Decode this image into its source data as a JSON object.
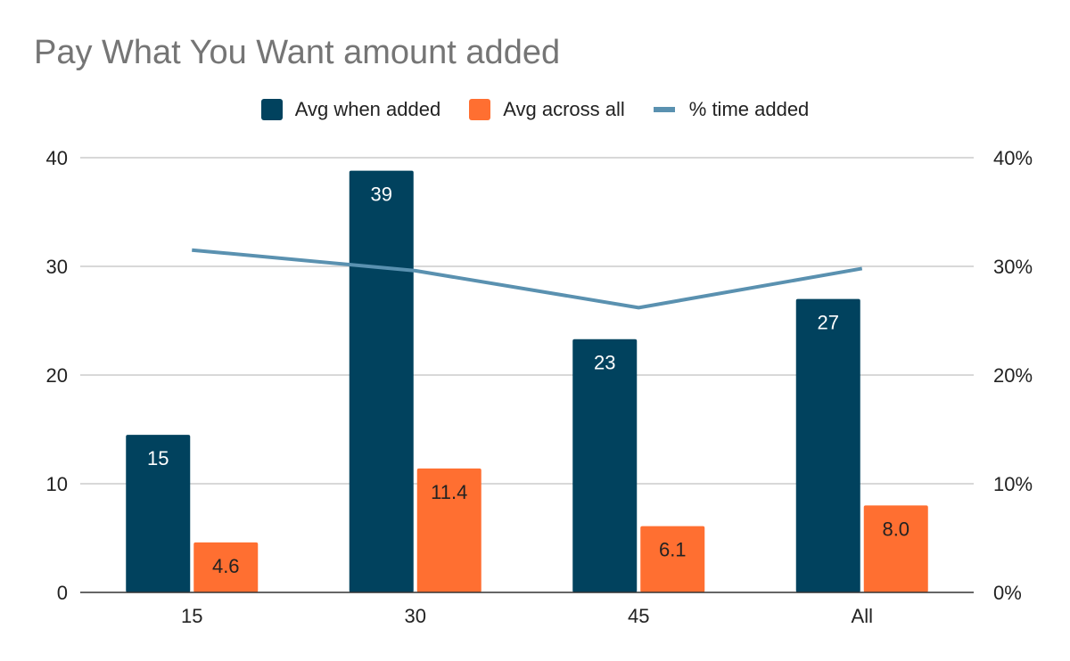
{
  "chart_data": {
    "type": "bar",
    "title": "Pay What You Want amount added",
    "categories": [
      "15",
      "30",
      "45",
      "All"
    ],
    "series": [
      {
        "name": "Avg when added",
        "kind": "bar",
        "axis": "left",
        "color": "#01425e",
        "values": [
          14.5,
          38.8,
          23.3,
          27.0
        ],
        "labels": [
          "15",
          "39",
          "23",
          "27"
        ]
      },
      {
        "name": "Avg across all",
        "kind": "bar",
        "axis": "left",
        "color": "#ff6f31",
        "values": [
          4.6,
          11.4,
          6.1,
          8.0
        ],
        "labels": [
          "4.6",
          "11.4",
          "6.1",
          "8.0"
        ]
      },
      {
        "name": "% time added",
        "kind": "line",
        "axis": "right",
        "color": "#5a91b0",
        "values": [
          0.315,
          0.296,
          0.262,
          0.298
        ]
      }
    ],
    "y_left": {
      "min": 0,
      "max": 40,
      "ticks": [
        "0",
        "10",
        "20",
        "30",
        "40"
      ]
    },
    "y_right": {
      "min": 0,
      "max": 0.4,
      "ticks": [
        "0%",
        "10%",
        "20%",
        "30%",
        "40%"
      ]
    },
    "grid": true,
    "legend_position": "top"
  }
}
